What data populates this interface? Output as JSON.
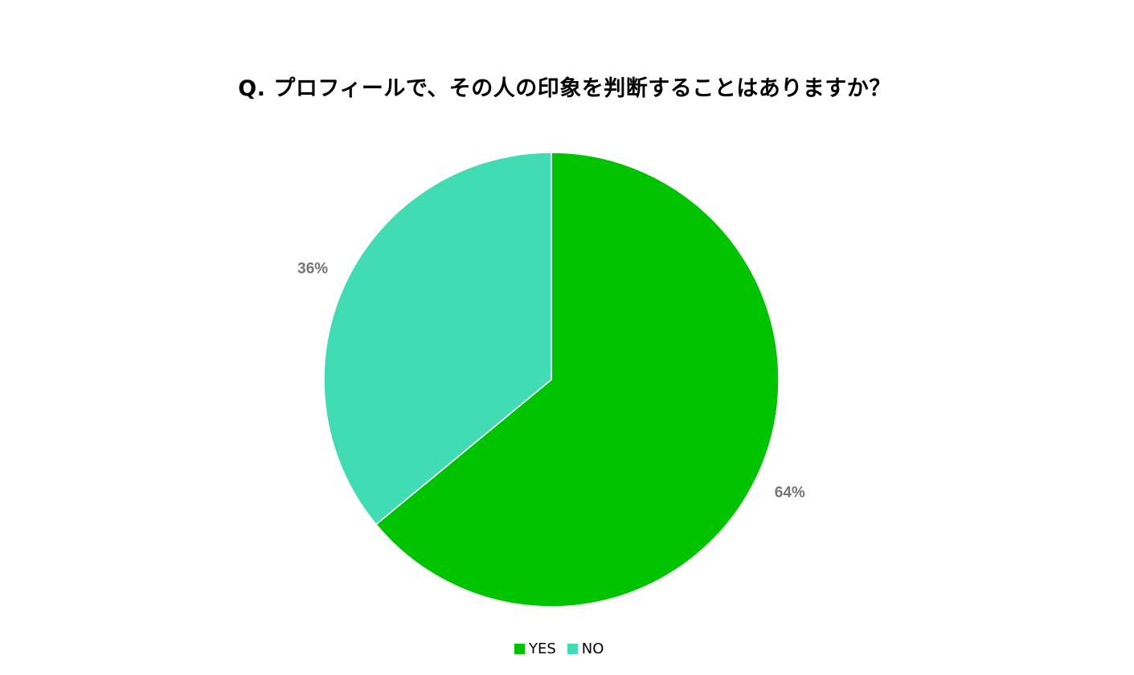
{
  "chart_data": {
    "type": "pie",
    "title": "Q. プロフィールで、その人の印象を判断することはありますか？",
    "categories": [
      "YES",
      "NO"
    ],
    "values": [
      64,
      36
    ],
    "data_labels": [
      "64%",
      "36%"
    ],
    "colors": [
      "#00c300",
      "#41dcb4"
    ],
    "legend_position": "bottom",
    "start_angle": "12 o'clock, clockwise"
  }
}
